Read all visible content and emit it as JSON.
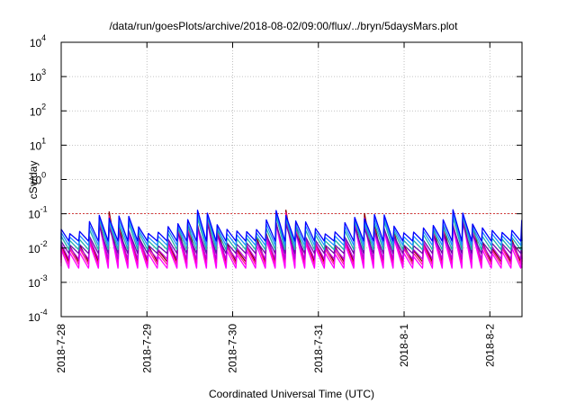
{
  "chart_data": {
    "type": "line",
    "title": "/data/run/goesPlots/archive/2018-08-02/09:00/flux/../bryn/5daysMars.plot",
    "xlabel": "Coordinated Universal Time (UTC)",
    "ylabel": "cSv/day",
    "y_scale": "log",
    "ylim": [
      0.0001,
      10000
    ],
    "xlim": [
      "2018-07-28T00:00",
      "2018-08-02T09:00"
    ],
    "grid": true,
    "y_ticks": [
      {
        "value": 0.0001,
        "mantissa": "10",
        "exp": "-4"
      },
      {
        "value": 0.001,
        "mantissa": "10",
        "exp": "-3"
      },
      {
        "value": 0.01,
        "mantissa": "10",
        "exp": "-2"
      },
      {
        "value": 0.1,
        "mantissa": "10",
        "exp": "-1"
      },
      {
        "value": 1,
        "mantissa": "10",
        "exp": "0"
      },
      {
        "value": 10,
        "mantissa": "10",
        "exp": "1"
      },
      {
        "value": 100,
        "mantissa": "10",
        "exp": "2"
      },
      {
        "value": 1000,
        "mantissa": "10",
        "exp": "3"
      },
      {
        "value": 10000,
        "mantissa": "10",
        "exp": "4"
      }
    ],
    "x_ticks": [
      {
        "value": "2018-07-28T00:00",
        "label": "2018-7-28"
      },
      {
        "value": "2018-07-29T00:00",
        "label": "2018-7-29"
      },
      {
        "value": "2018-07-30T00:00",
        "label": "2018-7-30"
      },
      {
        "value": "2018-07-31T00:00",
        "label": "2018-7-31"
      },
      {
        "value": "2018-08-01T00:00",
        "label": "2018-8-1"
      },
      {
        "value": "2018-08-02T00:00",
        "label": "2018-8-2"
      }
    ],
    "series": [
      {
        "color": "#8b0000",
        "peak": 0.13,
        "trough": 0.004
      },
      {
        "color": "#ff1493",
        "peak": 0.11,
        "trough": 0.0033
      },
      {
        "color": "#ff00ff",
        "peak": 0.09,
        "trough": 0.0026
      },
      {
        "color": "#c000e0",
        "peak": 0.075,
        "trough": 0.0048
      },
      {
        "color": "#6a0dad",
        "peak": 0.06,
        "trough": 0.007
      },
      {
        "color": "#20b2aa",
        "peak": 0.1,
        "trough": 0.009
      },
      {
        "color": "#1e90ff",
        "peak": 0.12,
        "trough": 0.012
      },
      {
        "color": "#0000ff",
        "peak": 0.14,
        "trough": 0.016
      }
    ],
    "sawtooth_period_hours": 2.75,
    "reference_line": {
      "value": 0.1,
      "color": "#cc0000"
    }
  }
}
